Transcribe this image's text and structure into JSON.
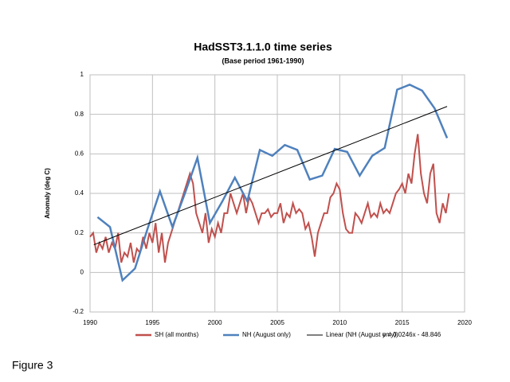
{
  "chart_data": {
    "type": "line",
    "title": "HadSST3.1.1.0 time series",
    "subtitle": "(Base period 1961-1990)",
    "y_label": "Anomaly (deg C)",
    "annotation": "y = 0.0246x - 48.846",
    "figure_label": "Figure 3",
    "xlim": [
      1990,
      2020
    ],
    "xticks": [
      1990,
      1995,
      2000,
      2005,
      2010,
      2015,
      2020
    ],
    "ylim": [
      -0.2,
      1
    ],
    "yticks": [
      -0.2,
      0,
      0.2,
      0.4,
      0.6,
      0.8,
      1
    ],
    "grid": true,
    "legend": "bottom",
    "series": [
      {
        "name": "SH (all months)",
        "color": "#c0504d",
        "x": [
          1990,
          1990.25,
          1990.5,
          1990.75,
          1991,
          1991.25,
          1991.5,
          1991.75,
          1992,
          1992.25,
          1992.5,
          1992.75,
          1993,
          1993.25,
          1993.5,
          1993.75,
          1994,
          1994.25,
          1994.5,
          1994.75,
          1995,
          1995.25,
          1995.5,
          1995.75,
          1996,
          1996.25,
          1996.5,
          1996.75,
          1997,
          1997.25,
          1997.5,
          1997.75,
          1998,
          1998.25,
          1998.5,
          1998.75,
          1999,
          1999.25,
          1999.5,
          1999.75,
          2000,
          2000.25,
          2000.5,
          2000.75,
          2001,
          2001.25,
          2001.5,
          2001.75,
          2002,
          2002.25,
          2002.5,
          2002.75,
          2003,
          2003.25,
          2003.5,
          2003.75,
          2004,
          2004.25,
          2004.5,
          2004.75,
          2005,
          2005.25,
          2005.5,
          2005.75,
          2006,
          2006.25,
          2006.5,
          2006.75,
          2007,
          2007.25,
          2007.5,
          2007.75,
          2008,
          2008.25,
          2008.5,
          2008.75,
          2009,
          2009.25,
          2009.5,
          2009.75,
          2010,
          2010.25,
          2010.5,
          2010.75,
          2011,
          2011.25,
          2011.5,
          2011.75,
          2012,
          2012.25,
          2012.5,
          2012.75,
          2013,
          2013.25,
          2013.5,
          2013.75,
          2014,
          2014.25,
          2014.5,
          2014.75,
          2015,
          2015.25,
          2015.5,
          2015.75,
          2016,
          2016.25,
          2016.5,
          2016.75,
          2017,
          2017.25,
          2017.5,
          2017.75,
          2018,
          2018.25,
          2018.5,
          2018.75
        ],
        "values": [
          0.18,
          0.2,
          0.1,
          0.15,
          0.12,
          0.18,
          0.1,
          0.15,
          0.12,
          0.2,
          0.05,
          0.1,
          0.08,
          0.15,
          0.05,
          0.12,
          0.1,
          0.18,
          0.12,
          0.2,
          0.15,
          0.25,
          0.1,
          0.2,
          0.05,
          0.15,
          0.2,
          0.25,
          0.3,
          0.35,
          0.4,
          0.45,
          0.5,
          0.45,
          0.3,
          0.25,
          0.2,
          0.3,
          0.15,
          0.22,
          0.18,
          0.25,
          0.2,
          0.3,
          0.3,
          0.4,
          0.35,
          0.3,
          0.35,
          0.4,
          0.3,
          0.38,
          0.35,
          0.3,
          0.25,
          0.3,
          0.3,
          0.32,
          0.28,
          0.3,
          0.3,
          0.35,
          0.25,
          0.3,
          0.28,
          0.35,
          0.3,
          0.32,
          0.3,
          0.22,
          0.25,
          0.18,
          0.08,
          0.2,
          0.25,
          0.3,
          0.3,
          0.38,
          0.4,
          0.45,
          0.42,
          0.3,
          0.22,
          0.2,
          0.2,
          0.3,
          0.28,
          0.25,
          0.3,
          0.35,
          0.28,
          0.3,
          0.28,
          0.35,
          0.3,
          0.32,
          0.3,
          0.35,
          0.4,
          0.42,
          0.45,
          0.4,
          0.5,
          0.45,
          0.6,
          0.7,
          0.5,
          0.4,
          0.35,
          0.5,
          0.55,
          0.3,
          0.25,
          0.35,
          0.3,
          0.4
        ]
      },
      {
        "name": "NH (August only)",
        "color": "#4f81bd",
        "x": [
          1990.6,
          1991.6,
          1992.6,
          1993.6,
          1994.6,
          1995.6,
          1996.6,
          1997.6,
          1998.6,
          1999.6,
          2000.6,
          2001.6,
          2002.6,
          2003.6,
          2004.6,
          2005.6,
          2006.6,
          2007.6,
          2008.6,
          2009.6,
          2010.6,
          2011.6,
          2012.6,
          2013.6,
          2014.6,
          2015.6,
          2016.6,
          2017.6,
          2018.6
        ],
        "values": [
          0.28,
          0.23,
          -0.04,
          0.02,
          0.22,
          0.41,
          0.23,
          0.4,
          0.58,
          0.25,
          0.36,
          0.48,
          0.36,
          0.62,
          0.59,
          0.645,
          0.62,
          0.47,
          0.49,
          0.625,
          0.61,
          0.49,
          0.59,
          0.63,
          0.925,
          0.95,
          0.92,
          0.83,
          0.68
        ]
      },
      {
        "name": "Linear (NH (August only))",
        "color": "#000000",
        "x": [
          1990.3,
          2018.6
        ],
        "values": [
          0.14,
          0.84
        ]
      }
    ]
  }
}
